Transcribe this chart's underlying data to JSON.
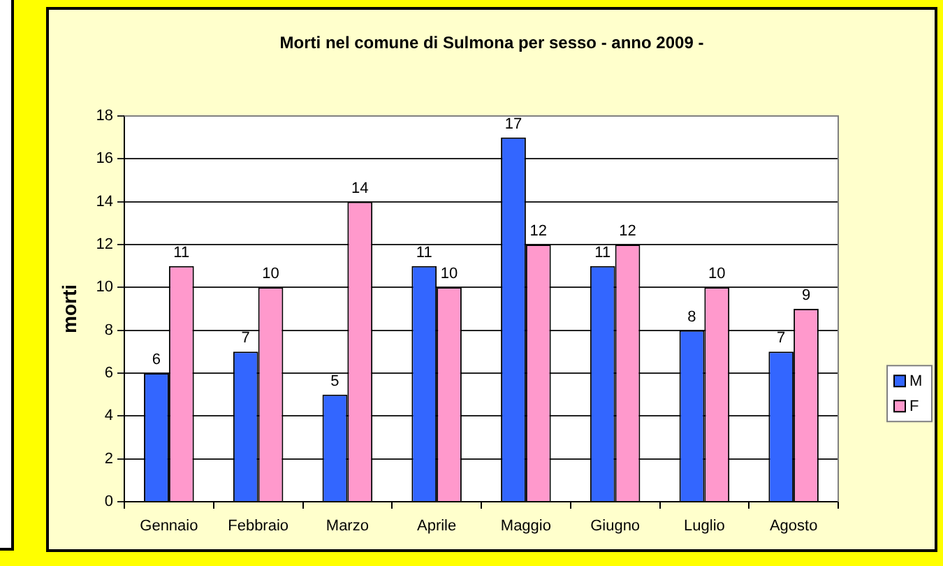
{
  "chart_data": {
    "type": "bar",
    "title": "Morti nel comune di Sulmona per sesso - anno 2009 -",
    "ylabel": "morti",
    "categories": [
      "Gennaio",
      "Febbraio",
      "Marzo",
      "Aprile",
      "Maggio",
      "Giugno",
      "Luglio",
      "Agosto"
    ],
    "series": [
      {
        "name": "M",
        "color": "#3366ff",
        "values": [
          6,
          7,
          5,
          11,
          17,
          11,
          8,
          7
        ]
      },
      {
        "name": "F",
        "color": "#ff99cc",
        "values": [
          11,
          10,
          14,
          10,
          12,
          12,
          10,
          9
        ]
      }
    ],
    "ylim": [
      0,
      18
    ],
    "yticks": [
      0,
      2,
      4,
      6,
      8,
      10,
      12,
      14,
      16,
      18
    ],
    "grid": "y",
    "legend": "right",
    "data_labels": true
  }
}
